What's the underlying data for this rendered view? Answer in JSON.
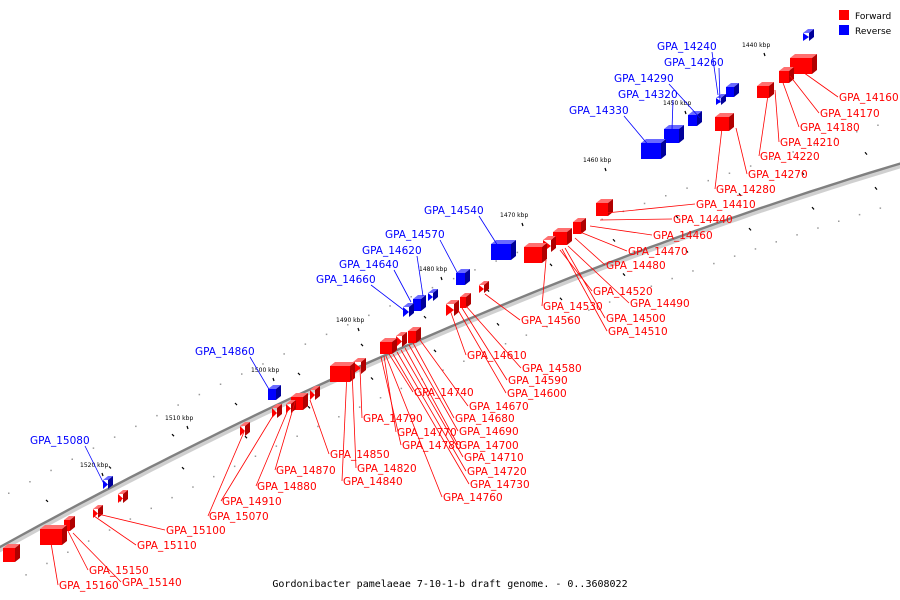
{
  "caption": "Gordonibacter pamelaeae 7-10-1-b draft genome. - 0..3608022",
  "legend": {
    "forward_label": "Forward",
    "reverse_label": "Reverse",
    "forward_color": "#ff0000",
    "reverse_color": "#0000ff"
  },
  "colors": {
    "forward": "#ff0000",
    "reverse": "#0000ff",
    "backbone": "#808080"
  },
  "kbp_labels": [
    "1440 kbp",
    "1450 kbp",
    "1460 kbp",
    "1470 kbp",
    "1480 kbp",
    "1490 kbp",
    "1500 kbp",
    "1510 kbp",
    "1520 kbp"
  ],
  "reverse_genes": [
    "GPA_14240",
    "GPA_14260",
    "GPA_14290",
    "GPA_14320",
    "GPA_14330",
    "GPA_14540",
    "GPA_14570",
    "GPA_14620",
    "GPA_14640",
    "GPA_14660",
    "GPA_14860",
    "GPA_15080"
  ],
  "forward_genes": [
    "GPA_14160",
    "GPA_14170",
    "GPA_14180",
    "GPA_14210",
    "GPA_14220",
    "GPA_14270",
    "GPA_14280",
    "GPA_14410",
    "GPA_14440",
    "GPA_14460",
    "GPA_14470",
    "GPA_14480",
    "GPA_14490",
    "GPA_14500",
    "GPA_14510",
    "GPA_14520",
    "GPA_14530",
    "GPA_14560",
    "GPA_14580",
    "GPA_14590",
    "GPA_14600",
    "GPA_14610",
    "GPA_14670",
    "GPA_14680",
    "GPA_14690",
    "GPA_14700",
    "GPA_14710",
    "GPA_14720",
    "GPA_14730",
    "GPA_14740",
    "GPA_14760",
    "GPA_14770",
    "GPA_14780",
    "GPA_14790",
    "GPA_14820",
    "GPA_14840",
    "GPA_14850",
    "GPA_14870",
    "GPA_14880",
    "GPA_14910",
    "GPA_15070",
    "GPA_15100",
    "GPA_15110",
    "GPA_15140",
    "GPA_15150",
    "GPA_15160"
  ]
}
